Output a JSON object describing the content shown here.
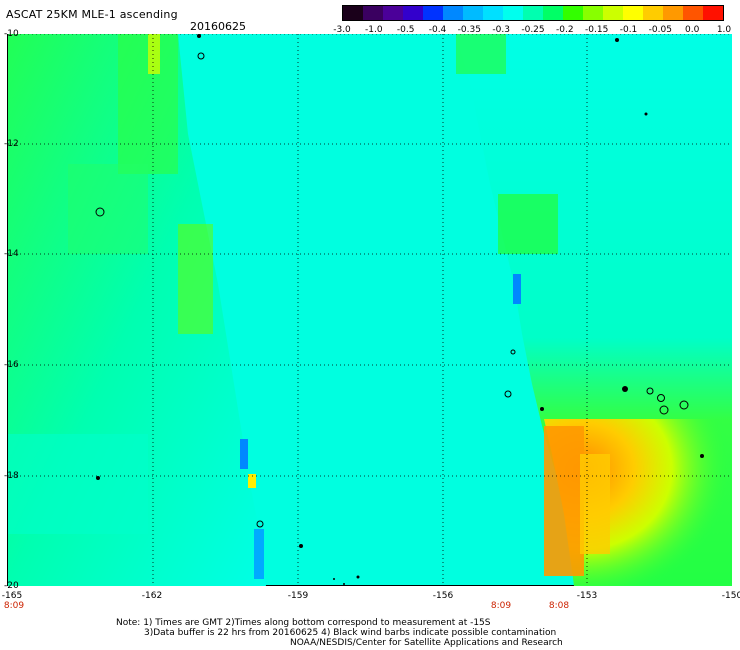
{
  "header": {
    "title": "ASCAT 25KM MLE-1 ascending",
    "date": "20160625"
  },
  "colorbar": {
    "colors": [
      "#1a001a",
      "#3a0060",
      "#4b0099",
      "#3300cc",
      "#0033ff",
      "#0088ff",
      "#00bbff",
      "#00e0ff",
      "#00ffee",
      "#00ffb0",
      "#00ff66",
      "#33ff00",
      "#88ff00",
      "#ccff00",
      "#ffff00",
      "#ffcc00",
      "#ff9900",
      "#ff5500",
      "#ff1100"
    ],
    "labels": [
      "-3.0",
      "-1.0",
      "-0.5",
      "-0.4",
      "-0.35",
      "-0.3",
      "-0.25",
      "-0.2",
      "-0.15",
      "-0.1",
      "-0.05",
      "0.0",
      "1.0"
    ]
  },
  "axes": {
    "y_ticks": [
      "-10",
      "-12",
      "-14",
      "-16",
      "-18",
      "-20"
    ],
    "x_ticks": [
      "-165",
      "-162",
      "-159",
      "-156",
      "-153",
      "-150"
    ],
    "time_labels": [
      "8:09",
      "8:09",
      "8:08"
    ]
  },
  "notes": {
    "line1": "Note: 1) Times are GMT 2)Times along bottom correspond to measurement at -15S",
    "line2": "3)Data buffer is 22 hrs from 20160625 4) Black wind barbs indicate possible contamination",
    "line3": "NOAA/NESDIS/Center for Satellite Applications and Research"
  }
}
